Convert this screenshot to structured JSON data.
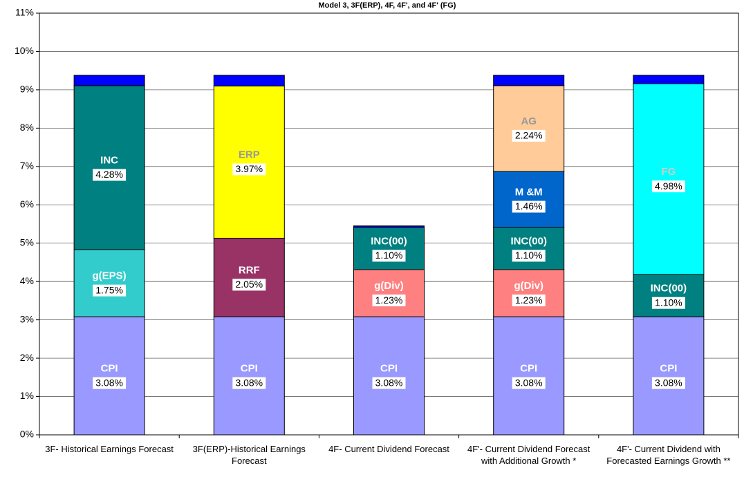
{
  "chart_data": {
    "type": "stacked_bar",
    "title": "Model 3, 3F(ERP), 4F, 4F', and 4F' (FG)",
    "categories": [
      "3F- Historical Earnings Forecast",
      "3F(ERP)-Historical Earnings Forecast",
      "4F- Current Dividend Forecast",
      "4F'- Current Dividend Forecast with Additional Growth *",
      "4F'- Current Dividend with Forecasted Earnings Growth **"
    ],
    "ylim": [
      0,
      11
    ],
    "yticks": [
      {
        "value": 0,
        "label": "0%"
      },
      {
        "value": 1,
        "label": "1%"
      },
      {
        "value": 2,
        "label": "2%"
      },
      {
        "value": 3,
        "label": "3%"
      },
      {
        "value": 4,
        "label": "4%"
      },
      {
        "value": 5,
        "label": "5%"
      },
      {
        "value": 6,
        "label": "6%"
      },
      {
        "value": 7,
        "label": "7%"
      },
      {
        "value": 8,
        "label": "8%"
      },
      {
        "value": 9,
        "label": "9%"
      },
      {
        "value": 10,
        "label": "10%"
      },
      {
        "value": 11,
        "label": "11%"
      }
    ],
    "grid": true,
    "series": [
      {
        "name": "CPI",
        "color": "#9999ff",
        "label_color": "#ffffff",
        "values": [
          3.08,
          3.08,
          3.08,
          3.08,
          3.08
        ],
        "value_labels": [
          "3.08%",
          "3.08%",
          "3.08%",
          "3.08%",
          "3.08%"
        ]
      },
      {
        "name": "g(EPS)",
        "color": "#33cccc",
        "label_color": "#ffffff",
        "values": [
          1.75,
          null,
          null,
          null,
          null
        ],
        "value_labels": [
          "1.75%",
          null,
          null,
          null,
          null
        ]
      },
      {
        "name": "RRF",
        "color": "#993366",
        "label_color": "#ffffff",
        "values": [
          null,
          2.05,
          null,
          null,
          null
        ],
        "value_labels": [
          null,
          "2.05%",
          null,
          null,
          null
        ]
      },
      {
        "name": "g(Div)",
        "color": "#ff8080",
        "label_color": "#ffffff",
        "values": [
          null,
          null,
          1.23,
          1.23,
          null
        ],
        "value_labels": [
          null,
          null,
          "1.23%",
          "1.23%",
          null
        ]
      },
      {
        "name": "INC(00)",
        "color": "#008080",
        "label_color": "#ffffff",
        "values": [
          null,
          null,
          1.1,
          1.1,
          1.1
        ],
        "value_labels": [
          null,
          null,
          "1.10%",
          "1.10%",
          "1.10%"
        ]
      },
      {
        "name": "INC",
        "color": "#008080",
        "label_color": "#ffffff",
        "values": [
          4.28,
          null,
          null,
          null,
          null
        ],
        "value_labels": [
          "4.28%",
          null,
          null,
          null,
          null
        ]
      },
      {
        "name": "ERP",
        "color": "#ffff00",
        "label_color": "#999999",
        "values": [
          null,
          3.97,
          null,
          null,
          null
        ],
        "value_labels": [
          null,
          "3.97%",
          null,
          null,
          null
        ]
      },
      {
        "name": "M &M",
        "color": "#0066cc",
        "label_color": "#ffffff",
        "values": [
          null,
          null,
          null,
          1.46,
          null
        ],
        "value_labels": [
          null,
          null,
          null,
          "1.46%",
          null
        ]
      },
      {
        "name": "AG",
        "color": "#ffcc99",
        "label_color": "#999999",
        "values": [
          null,
          null,
          null,
          2.24,
          null
        ],
        "value_labels": [
          null,
          null,
          null,
          "2.24%",
          null
        ]
      },
      {
        "name": "FG",
        "color": "#00ffff",
        "label_color": "#cccccc",
        "values": [
          null,
          null,
          null,
          null,
          4.98
        ],
        "value_labels": [
          null,
          null,
          null,
          null,
          "4.98%"
        ]
      },
      {
        "color": "#0000ff",
        "values": [
          0.27,
          0.28,
          0.04,
          0.27,
          0.22
        ]
      }
    ]
  }
}
